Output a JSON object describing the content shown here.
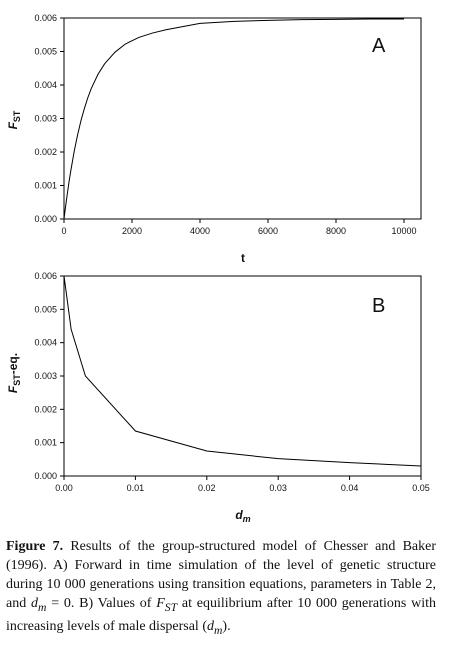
{
  "chart_data": [
    {
      "type": "line",
      "panel_label": "A",
      "xlabel": "t",
      "ylabel": "F",
      "ylabel_sub": "ST",
      "xlim": [
        0,
        10500
      ],
      "ylim": [
        0,
        0.006
      ],
      "xticks": [
        0,
        2000,
        4000,
        6000,
        8000,
        10000
      ],
      "xtick_labels": [
        "0",
        "2000",
        "4000",
        "6000",
        "8000",
        "10000"
      ],
      "yticks": [
        0,
        0.001,
        0.002,
        0.003,
        0.004,
        0.005,
        0.006
      ],
      "ytick_labels": [
        "0.000",
        "0.001",
        "0.002",
        "0.003",
        "0.004",
        "0.005",
        "0.006"
      ],
      "grid": false,
      "legend": "none",
      "series": [
        {
          "x": [
            0,
            50,
            100,
            150,
            200,
            300,
            400,
            500,
            600,
            700,
            800,
            1000,
            1200,
            1500,
            1800,
            2200,
            2600,
            3000,
            4000,
            5000,
            6000,
            7000,
            8000,
            9000,
            10000
          ],
          "y": [
            0,
            0.0004,
            0.00077,
            0.00112,
            0.00144,
            0.00202,
            0.00251,
            0.00294,
            0.0033,
            0.00362,
            0.00389,
            0.00432,
            0.00464,
            0.00498,
            0.00522,
            0.00542,
            0.00555,
            0.00565,
            0.00584,
            0.0059,
            0.00593,
            0.00595,
            0.00596,
            0.00597,
            0.00597
          ]
        }
      ]
    },
    {
      "type": "line",
      "panel_label": "B",
      "xlabel": "d",
      "xlabel_sub": "m",
      "ylabel": "F",
      "ylabel_sub": "ST",
      "ylabel_suffix": "-eq.",
      "xlim": [
        0,
        0.05
      ],
      "ylim": [
        0,
        0.006
      ],
      "xticks": [
        0,
        0.01,
        0.02,
        0.03,
        0.04,
        0.05
      ],
      "xtick_labels": [
        "0.00",
        "0.01",
        "0.02",
        "0.03",
        "0.04",
        "0.05"
      ],
      "yticks": [
        0,
        0.001,
        0.002,
        0.003,
        0.004,
        0.005,
        0.006
      ],
      "ytick_labels": [
        "0.000",
        "0.001",
        "0.002",
        "0.003",
        "0.004",
        "0.005",
        "0.006"
      ],
      "grid": false,
      "legend": "none",
      "series": [
        {
          "x": [
            0,
            0.001,
            0.003,
            0.01,
            0.02,
            0.03,
            0.04,
            0.05
          ],
          "y": [
            0.006,
            0.0044,
            0.003,
            0.00135,
            0.00075,
            0.00052,
            0.0004,
            0.0003
          ]
        }
      ]
    }
  ],
  "caption": {
    "fignum": "Figure 7.",
    "p1": " Results of the group-structured model of Chesser and Baker (1996). A) Forward in time simulation of the level of genetic structure during 10 000 generations using transition equations, parameters in Table 2, and ",
    "dm1_base": "d",
    "dm1_sub": "m",
    "p2": " = 0. B) Values of ",
    "fst_base": "F",
    "fst_sub": "ST",
    "p3": " at equilibrium after 10 000 generations with increasing levels of male dispersal (",
    "dm2_base": "d",
    "dm2_sub": "m",
    "p4": ")."
  }
}
